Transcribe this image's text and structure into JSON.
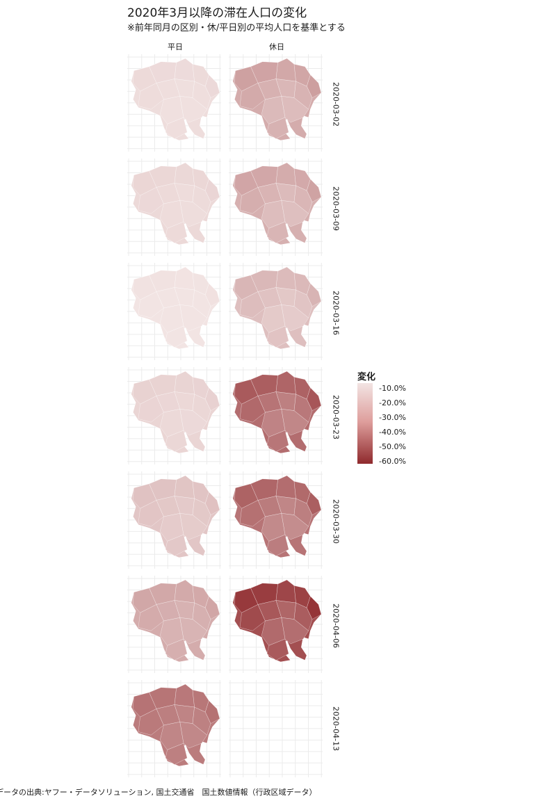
{
  "title": "2020年3月以降の滞在人口の変化",
  "subtitle": "※前年同月の区別・休/平日別の平均人口を基準とする",
  "columns": [
    "平日",
    "休日"
  ],
  "rows": [
    "2020-03-02",
    "2020-03-09",
    "2020-03-16",
    "2020-03-23",
    "2020-03-30",
    "2020-04-06",
    "2020-04-13"
  ],
  "legend": {
    "title": "変化",
    "labels": [
      "-10.0%",
      "-20.0%",
      "-30.0%",
      "-40.0%",
      "-50.0%",
      "-60.0%"
    ],
    "colors": {
      "low": "#f2e4e3",
      "high": "#8f2a2d"
    }
  },
  "caption": "データの出典:ヤフー・データソリューション, 国土交通省　国土数値情報（行政区域データ）",
  "chart_data": {
    "type": "heatmap",
    "facets": {
      "columns": [
        "平日",
        "休日"
      ],
      "rows": [
        "2020-03-02",
        "2020-03-09",
        "2020-03-16",
        "2020-03-23",
        "2020-03-30",
        "2020-04-06",
        "2020-04-13"
      ]
    },
    "value_range": [
      -10.0,
      -60.0
    ],
    "approx_average_change_percent": {
      "平日": [
        -12,
        -13,
        -10,
        -14,
        -18,
        -25,
        -38
      ],
      "休日": [
        -25,
        -24,
        -20,
        -42,
        -40,
        -50,
        null
      ]
    }
  }
}
